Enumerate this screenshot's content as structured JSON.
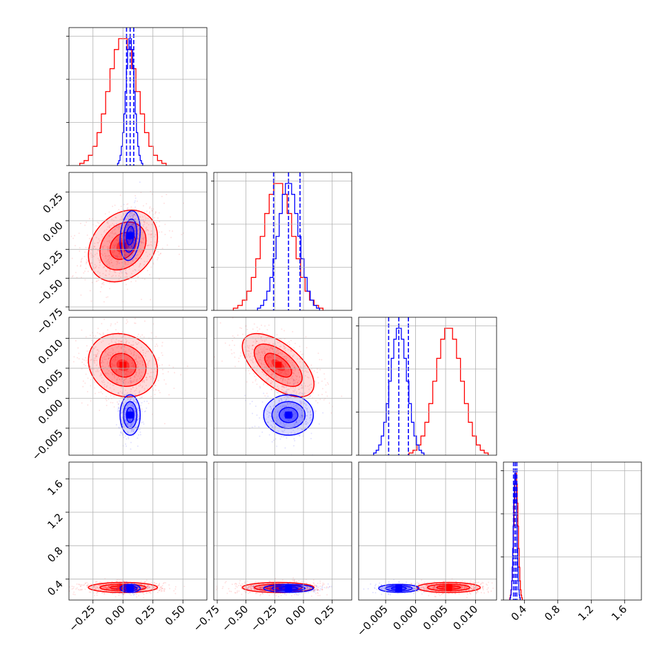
{
  "colors": {
    "red": "#ff0000",
    "blue": "#0000ff",
    "grid": "#b0b0b0",
    "frame": "#000000"
  },
  "chart_data": {
    "type": "corner",
    "parameters": 4,
    "grid": true,
    "ranges": [
      [
        -0.45,
        0.7
      ],
      [
        -0.78,
        0.42
      ],
      [
        -0.0095,
        0.0135
      ],
      [
        0.15,
        1.8
      ]
    ],
    "ticks": [
      {
        "values": [
          -0.25,
          0.0,
          0.25,
          0.5
        ],
        "labels": [
          "−0.25",
          "0.00",
          "0.25",
          "0.50"
        ]
      },
      {
        "values": [
          -0.75,
          -0.5,
          -0.25,
          0.0,
          0.25
        ],
        "labels": [
          "−0.75",
          "−0.50",
          "−0.25",
          "0.00",
          "0.25"
        ]
      },
      {
        "values": [
          -0.005,
          0.0,
          0.005,
          0.01
        ],
        "labels": [
          "−0.005",
          "0.000",
          "0.005",
          "0.010"
        ]
      },
      {
        "values": [
          0.4,
          0.8,
          1.2,
          1.6
        ],
        "labels": [
          "0.4",
          "0.8",
          "1.2",
          "1.6"
        ]
      }
    ],
    "series": [
      {
        "color": "#ff0000",
        "dist": [
          {
            "mean": 0.0,
            "sd": 0.12
          },
          {
            "mean": -0.22,
            "sd": 0.13
          },
          {
            "mean": 0.0055,
            "sd": 0.0022
          },
          {
            "mean": 0.3,
            "sd": 0.025
          }
        ],
        "corr": {
          "1-0": 0.25,
          "2-0": -0.15,
          "2-1": -0.6,
          "3-0": 0.0,
          "3-1": 0.0,
          "3-2": 0.0
        }
      },
      {
        "color": "#0000ff",
        "dist": [
          {
            "mean": 0.06,
            "sd": 0.035
          },
          {
            "mean": -0.13,
            "sd": 0.09
          },
          {
            "mean": -0.0028,
            "sd": 0.0014
          },
          {
            "mean": 0.29,
            "sd": 0.02
          }
        ],
        "corr": {
          "1-0": 0.2,
          "2-0": 0.0,
          "2-1": 0.0,
          "3-0": 0.0,
          "3-1": 0.0,
          "3-2": 0.0
        },
        "quantiles": [
          [
            0.03,
            0.06,
            0.09
          ],
          [
            -0.26,
            -0.13,
            -0.03
          ],
          [
            -0.0045,
            -0.0028,
            -0.0012
          ],
          [
            0.27,
            0.29,
            0.31
          ]
        ]
      }
    ],
    "hist_bins": 20,
    "contour_levels": 3,
    "scatter_points": 350
  }
}
